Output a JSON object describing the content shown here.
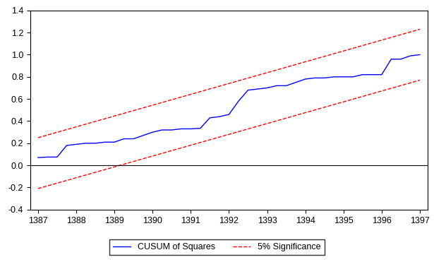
{
  "chart_data": {
    "type": "line",
    "series": [
      {
        "name": "CUSUM of Squares",
        "color": "#0000ff",
        "line_style": "solid",
        "x": [
          1387.0,
          1387.25,
          1387.5,
          1387.75,
          1388.0,
          1388.25,
          1388.5,
          1388.75,
          1389.0,
          1389.25,
          1389.5,
          1389.75,
          1390.0,
          1390.25,
          1390.5,
          1390.75,
          1391.0,
          1391.25,
          1391.5,
          1391.75,
          1392.0,
          1392.25,
          1392.5,
          1392.75,
          1393.0,
          1393.25,
          1393.5,
          1393.75,
          1394.0,
          1394.25,
          1394.5,
          1394.75,
          1395.0,
          1395.25,
          1395.5,
          1395.75,
          1396.0,
          1396.25,
          1396.5,
          1396.75,
          1397.0
        ],
        "values": [
          0.07,
          0.075,
          0.075,
          0.18,
          0.19,
          0.2,
          0.2,
          0.21,
          0.21,
          0.24,
          0.24,
          0.27,
          0.3,
          0.32,
          0.32,
          0.33,
          0.33,
          0.335,
          0.43,
          0.44,
          0.46,
          0.58,
          0.68,
          0.69,
          0.7,
          0.72,
          0.72,
          0.75,
          0.78,
          0.79,
          0.79,
          0.8,
          0.8,
          0.8,
          0.82,
          0.82,
          0.82,
          0.96,
          0.96,
          0.99,
          1.0
        ]
      },
      {
        "name": "5% Significance",
        "color": "#ff0000",
        "line_style": "dashed",
        "x": [
          1387.0,
          1397.0
        ],
        "upper": [
          0.25,
          1.23
        ],
        "lower": [
          -0.21,
          0.77
        ]
      }
    ],
    "zero_line": 0,
    "xlim": [
      1386.8,
      1397.2
    ],
    "xticks": [
      1387,
      1388,
      1389,
      1390,
      1391,
      1392,
      1393,
      1394,
      1395,
      1396,
      1397
    ],
    "ylim": [
      -0.4,
      1.4
    ],
    "yticks": [
      -0.4,
      -0.2,
      {
        "value": 0.0,
        "label": "0.0"
      },
      0.2,
      0.4,
      0.6,
      0.8,
      {
        "value": 1.0,
        "label": "1.0"
      },
      1.2,
      1.4
    ],
    "grid": false,
    "legend": "bottom"
  }
}
